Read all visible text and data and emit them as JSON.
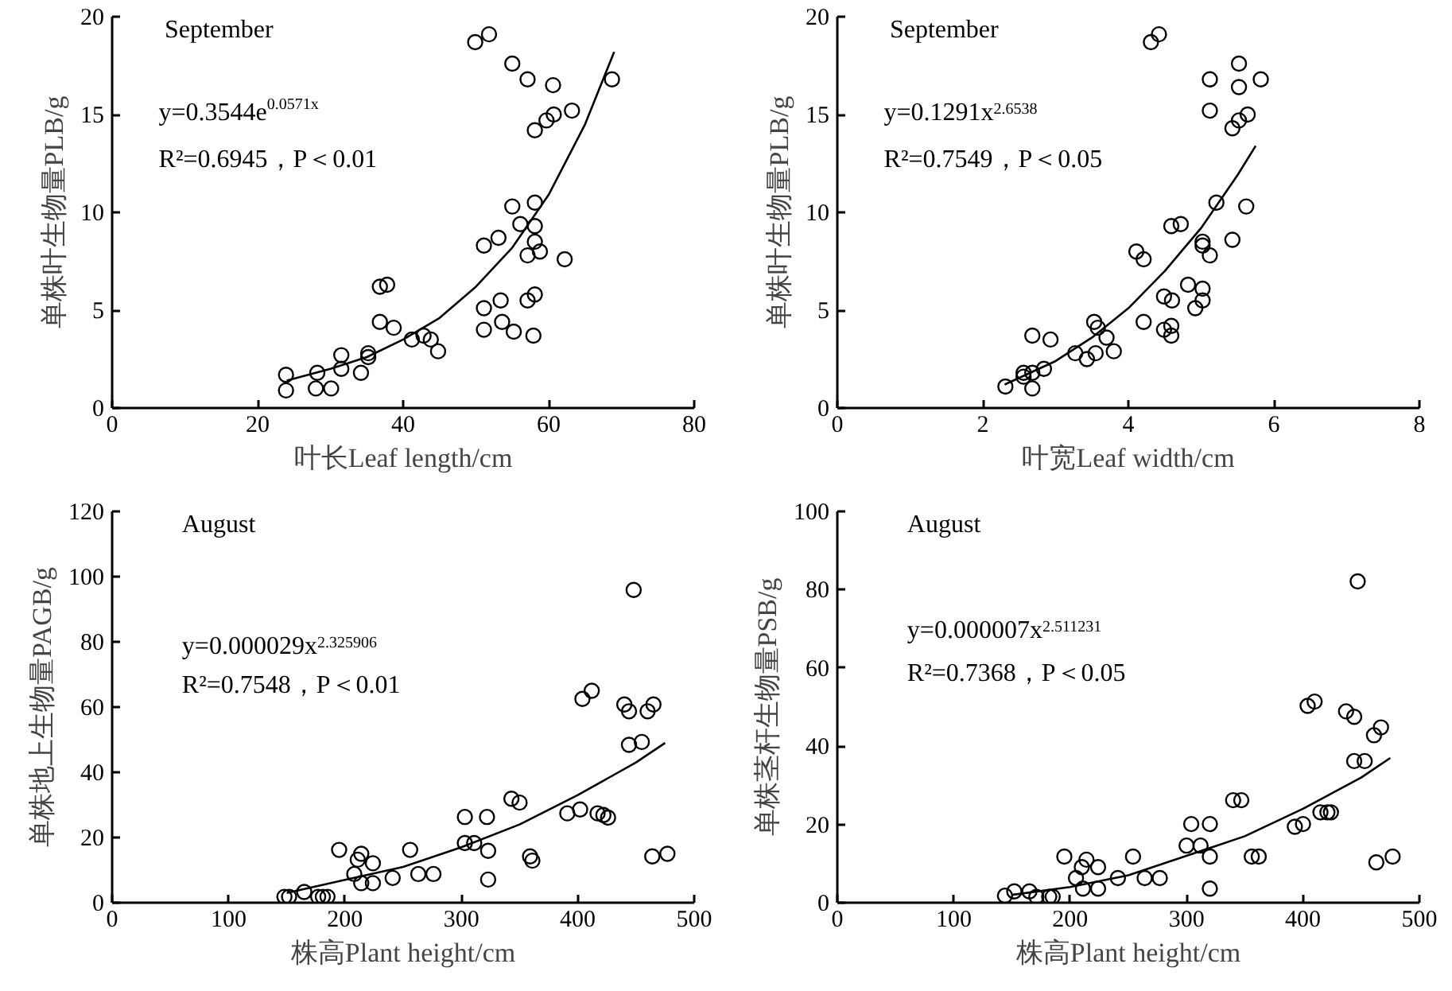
{
  "chart_data": [
    {
      "type": "scatter",
      "xlabel": "叶长Leaf length/cm",
      "ylabel": "单株叶生物量PLB/g",
      "xlim": [
        0,
        80
      ],
      "xticks": [
        0,
        20,
        40,
        60,
        80
      ],
      "ylim": [
        0,
        20
      ],
      "yticks": [
        0,
        5,
        10,
        15,
        20
      ],
      "grid": false,
      "annotations": [
        "September",
        "y=0.3544e$^{0.0571x}$",
        "R²=0.6945，P＜0.01"
      ],
      "series": [
        {
          "marker": "circle",
          "color": "#000000",
          "x": [
            23.9,
            23.9,
            28.2,
            28.0,
            30.1,
            31.5,
            31.5,
            34.2,
            35.2,
            35.2,
            36.8,
            37.8,
            36.8,
            38.7,
            41.2,
            42.8,
            43.8,
            44.8,
            49.9,
            51.8,
            51.1,
            53.1,
            51.1,
            53.4,
            51.1,
            53.6,
            55.2,
            55.0,
            55.0,
            56.1,
            57.1,
            57.1,
            57.1,
            58.1,
            57.9,
            58.1,
            58.1,
            58.1,
            58.1,
            58.8,
            59.7,
            60.7,
            60.6,
            63.2,
            62.2,
            68.7
          ],
          "values": [
            1.7,
            0.9,
            1.8,
            1.0,
            1.0,
            2.7,
            2.0,
            1.8,
            2.6,
            2.8,
            6.2,
            6.3,
            4.4,
            4.1,
            3.5,
            3.7,
            3.5,
            2.9,
            18.7,
            19.1,
            8.3,
            8.7,
            5.1,
            5.5,
            4.0,
            4.4,
            3.9,
            17.6,
            10.3,
            9.4,
            16.8,
            7.8,
            5.5,
            5.8,
            3.7,
            14.2,
            10.5,
            9.3,
            8.5,
            8.0,
            14.7,
            15.0,
            16.5,
            15.2,
            7.6,
            16.8
          ]
        },
        {
          "type": "line",
          "marker": "none",
          "line_style": "solid",
          "color": "#000000",
          "x": [
            24,
            30,
            35,
            40,
            45,
            50,
            55,
            60,
            65,
            69
          ],
          "values": [
            1.4,
            2.0,
            2.6,
            3.5,
            4.6,
            6.2,
            8.2,
            10.9,
            14.5,
            18.2
          ]
        }
      ]
    },
    {
      "type": "scatter",
      "xlabel": "叶宽Leaf width/cm",
      "ylabel": "单株叶生物量PLB/g",
      "xlim": [
        0,
        8
      ],
      "xticks": [
        0,
        2,
        4,
        6,
        8
      ],
      "ylim": [
        0,
        20
      ],
      "yticks": [
        0,
        5,
        10,
        15,
        20
      ],
      "grid": false,
      "annotations": [
        "September",
        "y=0.1291x$^{2.6538}$",
        "R²=0.7549，P＜0.05"
      ],
      "series": [
        {
          "marker": "circle",
          "color": "#000000",
          "x": [
            2.31,
            2.56,
            2.56,
            2.68,
            2.68,
            2.68,
            2.84,
            2.93,
            3.27,
            3.43,
            3.55,
            3.53,
            3.58,
            3.7,
            3.8,
            4.11,
            4.21,
            4.21,
            4.31,
            4.42,
            4.49,
            4.49,
            4.59,
            4.72,
            4.6,
            4.59,
            4.59,
            4.82,
            4.92,
            5.02,
            5.02,
            5.02,
            5.02,
            5.12,
            5.12,
            5.12,
            5.21,
            5.43,
            5.43,
            5.52,
            5.52,
            5.52,
            5.64,
            5.62,
            5.82
          ],
          "values": [
            1.1,
            1.8,
            1.6,
            1.8,
            1.0,
            3.7,
            2.0,
            3.5,
            2.8,
            2.5,
            2.8,
            4.4,
            4.1,
            3.6,
            2.9,
            8.0,
            7.6,
            4.4,
            18.7,
            19.1,
            5.7,
            4.0,
            9.3,
            9.4,
            5.5,
            4.2,
            3.7,
            6.3,
            5.1,
            8.5,
            8.3,
            6.1,
            5.5,
            7.8,
            16.8,
            15.2,
            10.5,
            14.3,
            8.6,
            17.6,
            16.4,
            14.7,
            15.0,
            10.3,
            16.8
          ]
        },
        {
          "type": "line",
          "marker": "none",
          "line_style": "solid",
          "color": "#000000",
          "x": [
            2.3,
            3,
            3.5,
            4,
            4.5,
            5,
            5.5,
            5.75
          ],
          "values": [
            1.2,
            2.4,
            3.6,
            5.1,
            7.0,
            9.2,
            11.9,
            13.4
          ]
        }
      ]
    },
    {
      "type": "scatter",
      "xlabel": "株高Plant height/cm",
      "ylabel": "单株地上生物量PAGB/g",
      "xlim": [
        0,
        500
      ],
      "xticks": [
        0,
        100,
        200,
        300,
        400,
        500
      ],
      "ylim": [
        0,
        120
      ],
      "yticks": [
        0,
        20,
        40,
        60,
        80,
        100,
        120
      ],
      "grid": false,
      "annotations": [
        "August",
        "y=0.000029x$^{2.325906}$",
        "R²=0.7548，P＜0.01"
      ],
      "series": [
        {
          "marker": "circle",
          "color": "#000000",
          "x": [
            148,
            152,
            165,
            177,
            181,
            185,
            195,
            208,
            211,
            214,
            214,
            224,
            224,
            241,
            256,
            263,
            276,
            303,
            303,
            311,
            322,
            323,
            323,
            343,
            350,
            359,
            361,
            391,
            402,
            404,
            412,
            417,
            422,
            426,
            440,
            444,
            444,
            448,
            455,
            460,
            465,
            464,
            477
          ],
          "values": [
            1.8,
            1.8,
            3.3,
            1.8,
            1.8,
            1.8,
            16.2,
            8.8,
            13.2,
            15.0,
            6.0,
            12.1,
            6.0,
            7.6,
            16.2,
            8.8,
            8.8,
            26.3,
            18.3,
            18.3,
            26.3,
            15.9,
            7.1,
            31.9,
            30.7,
            14.2,
            12.9,
            27.4,
            28.6,
            62.5,
            65.0,
            27.4,
            26.9,
            26.1,
            60.8,
            58.7,
            48.4,
            95.9,
            49.3,
            58.7,
            60.8,
            14.2,
            15.0
          ]
        },
        {
          "type": "line",
          "marker": "none",
          "line_style": "solid",
          "color": "#000000",
          "x": [
            150,
            200,
            250,
            300,
            350,
            400,
            450,
            475
          ],
          "values": [
            3,
            7,
            11,
            17,
            24,
            33,
            43,
            49
          ]
        }
      ]
    },
    {
      "type": "scatter",
      "xlabel": "株高Plant height/cm",
      "ylabel": "单株茎杆生物量PSB/g",
      "xlim": [
        0,
        500
      ],
      "xticks": [
        0,
        100,
        200,
        300,
        400,
        500
      ],
      "ylim": [
        0,
        100
      ],
      "yticks": [
        0,
        20,
        40,
        60,
        80,
        100
      ],
      "grid": false,
      "annotations": [
        "August",
        "y=0.000007x$^{2.511231}$",
        "R²=0.7368，P＜0.05"
      ],
      "series": [
        {
          "marker": "circle",
          "color": "#000000",
          "x": [
            144,
            152,
            165,
            171,
            182,
            185,
            195,
            205,
            210,
            214,
            211,
            224,
            224,
            241,
            254,
            264,
            277,
            300,
            304,
            312,
            320,
            320,
            320,
            340,
            347,
            356,
            362,
            393,
            400,
            404,
            410,
            415,
            421,
            424,
            437,
            444,
            444,
            447,
            453,
            461,
            467,
            463,
            477
          ],
          "values": [
            1.8,
            2.9,
            2.9,
            1.5,
            1.5,
            1.5,
            11.8,
            6.3,
            9.1,
            11.0,
            3.6,
            9.1,
            3.6,
            6.3,
            11.8,
            6.3,
            6.3,
            14.6,
            20.1,
            14.6,
            20.1,
            11.8,
            3.6,
            26.2,
            26.2,
            11.8,
            11.8,
            19.4,
            20.1,
            50.3,
            51.4,
            23.1,
            23.1,
            23.1,
            48.9,
            47.5,
            36.2,
            82.1,
            36.2,
            42.8,
            44.8,
            10.3,
            11.8
          ]
        },
        {
          "type": "line",
          "marker": "none",
          "line_style": "solid",
          "color": "#000000",
          "x": [
            150,
            200,
            250,
            300,
            350,
            400,
            450,
            475
          ],
          "values": [
            2,
            4,
            7,
            12,
            17,
            24,
            32,
            37
          ]
        }
      ]
    }
  ]
}
